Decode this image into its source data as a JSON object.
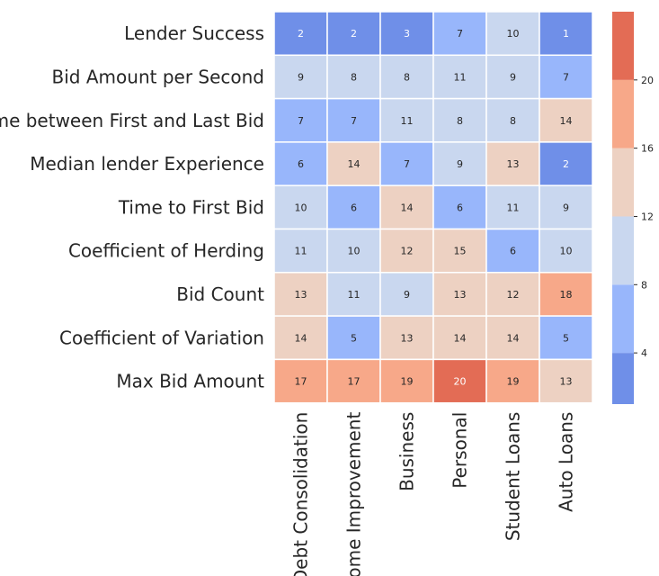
{
  "chart_data": {
    "type": "heatmap",
    "rows": [
      "Lender Success",
      "Bid Amount per Second",
      "Time between First and Last Bid",
      "Median lender Experience",
      "Time to First Bid",
      "Coefficient of Herding",
      "Bid Count",
      "Coefficient of Variation",
      "Max Bid Amount"
    ],
    "columns": [
      "Debt Consolidation",
      "Home Improvement",
      "Business",
      "Personal",
      "Student Loans",
      "Auto Loans"
    ],
    "values": [
      [
        2,
        2,
        3,
        7,
        10,
        1
      ],
      [
        9,
        8,
        8,
        11,
        9,
        7
      ],
      [
        7,
        7,
        11,
        8,
        8,
        14
      ],
      [
        6,
        14,
        7,
        9,
        13,
        2
      ],
      [
        10,
        6,
        14,
        6,
        11,
        9
      ],
      [
        11,
        10,
        12,
        15,
        6,
        10
      ],
      [
        13,
        11,
        9,
        13,
        12,
        18
      ],
      [
        14,
        5,
        13,
        14,
        14,
        5
      ],
      [
        17,
        17,
        19,
        20,
        19,
        13
      ]
    ],
    "colorbar": {
      "range": [
        1,
        24
      ],
      "ticks": [
        4,
        8,
        12,
        16,
        20
      ],
      "bins": [
        {
          "from": 1,
          "to": 4,
          "color": "#6f8fe8"
        },
        {
          "from": 4,
          "to": 8,
          "color": "#98b6fb"
        },
        {
          "from": 8,
          "to": 12,
          "color": "#c9d7ef"
        },
        {
          "from": 12,
          "to": 16,
          "color": "#edd1c2"
        },
        {
          "from": 16,
          "to": 20,
          "color": "#f7a889"
        },
        {
          "from": 20,
          "to": 24,
          "color": "#e36c55"
        }
      ]
    },
    "grid": true,
    "legend": "right"
  }
}
